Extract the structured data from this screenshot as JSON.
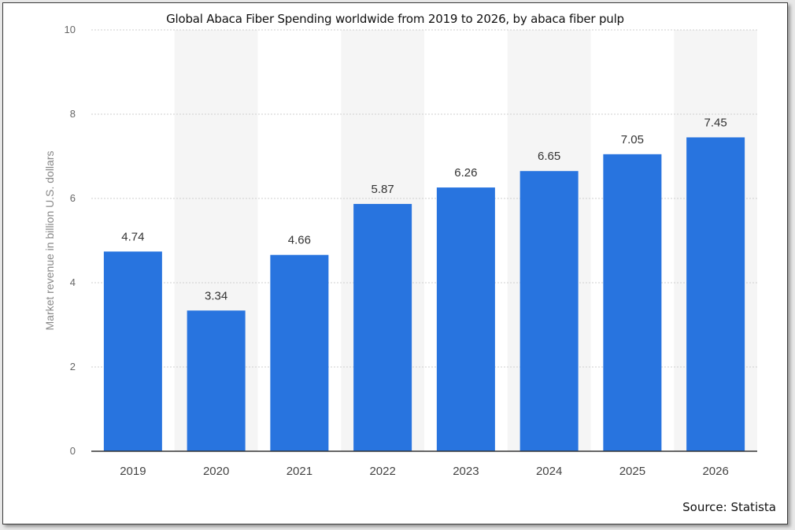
{
  "source_text": "Source: Statista",
  "chart_data": {
    "type": "bar",
    "title": "Global Abaca Fiber Spending worldwide from 2019 to 2026, by abaca fiber pulp",
    "xlabel": "",
    "ylabel": "Market revenue in billion U.S. dollars",
    "categories": [
      "2019",
      "2020",
      "2021",
      "2022",
      "2023",
      "2024",
      "2025",
      "2026"
    ],
    "values": [
      4.74,
      3.34,
      4.66,
      5.87,
      6.26,
      6.65,
      7.05,
      7.45
    ],
    "data_labels": [
      "4.74",
      "3.34",
      "4.66",
      "5.87",
      "6.26",
      "6.65",
      "7.05",
      "7.45"
    ],
    "yticks": [
      "0",
      "2",
      "4",
      "6",
      "8",
      "10"
    ],
    "ylim": [
      0,
      10
    ],
    "grid": true,
    "legend": "none",
    "colors": {
      "bar": "#2874df",
      "band_alt": "#f5f5f5",
      "gridline": "#cfcfcf",
      "axis": "#333333"
    }
  }
}
